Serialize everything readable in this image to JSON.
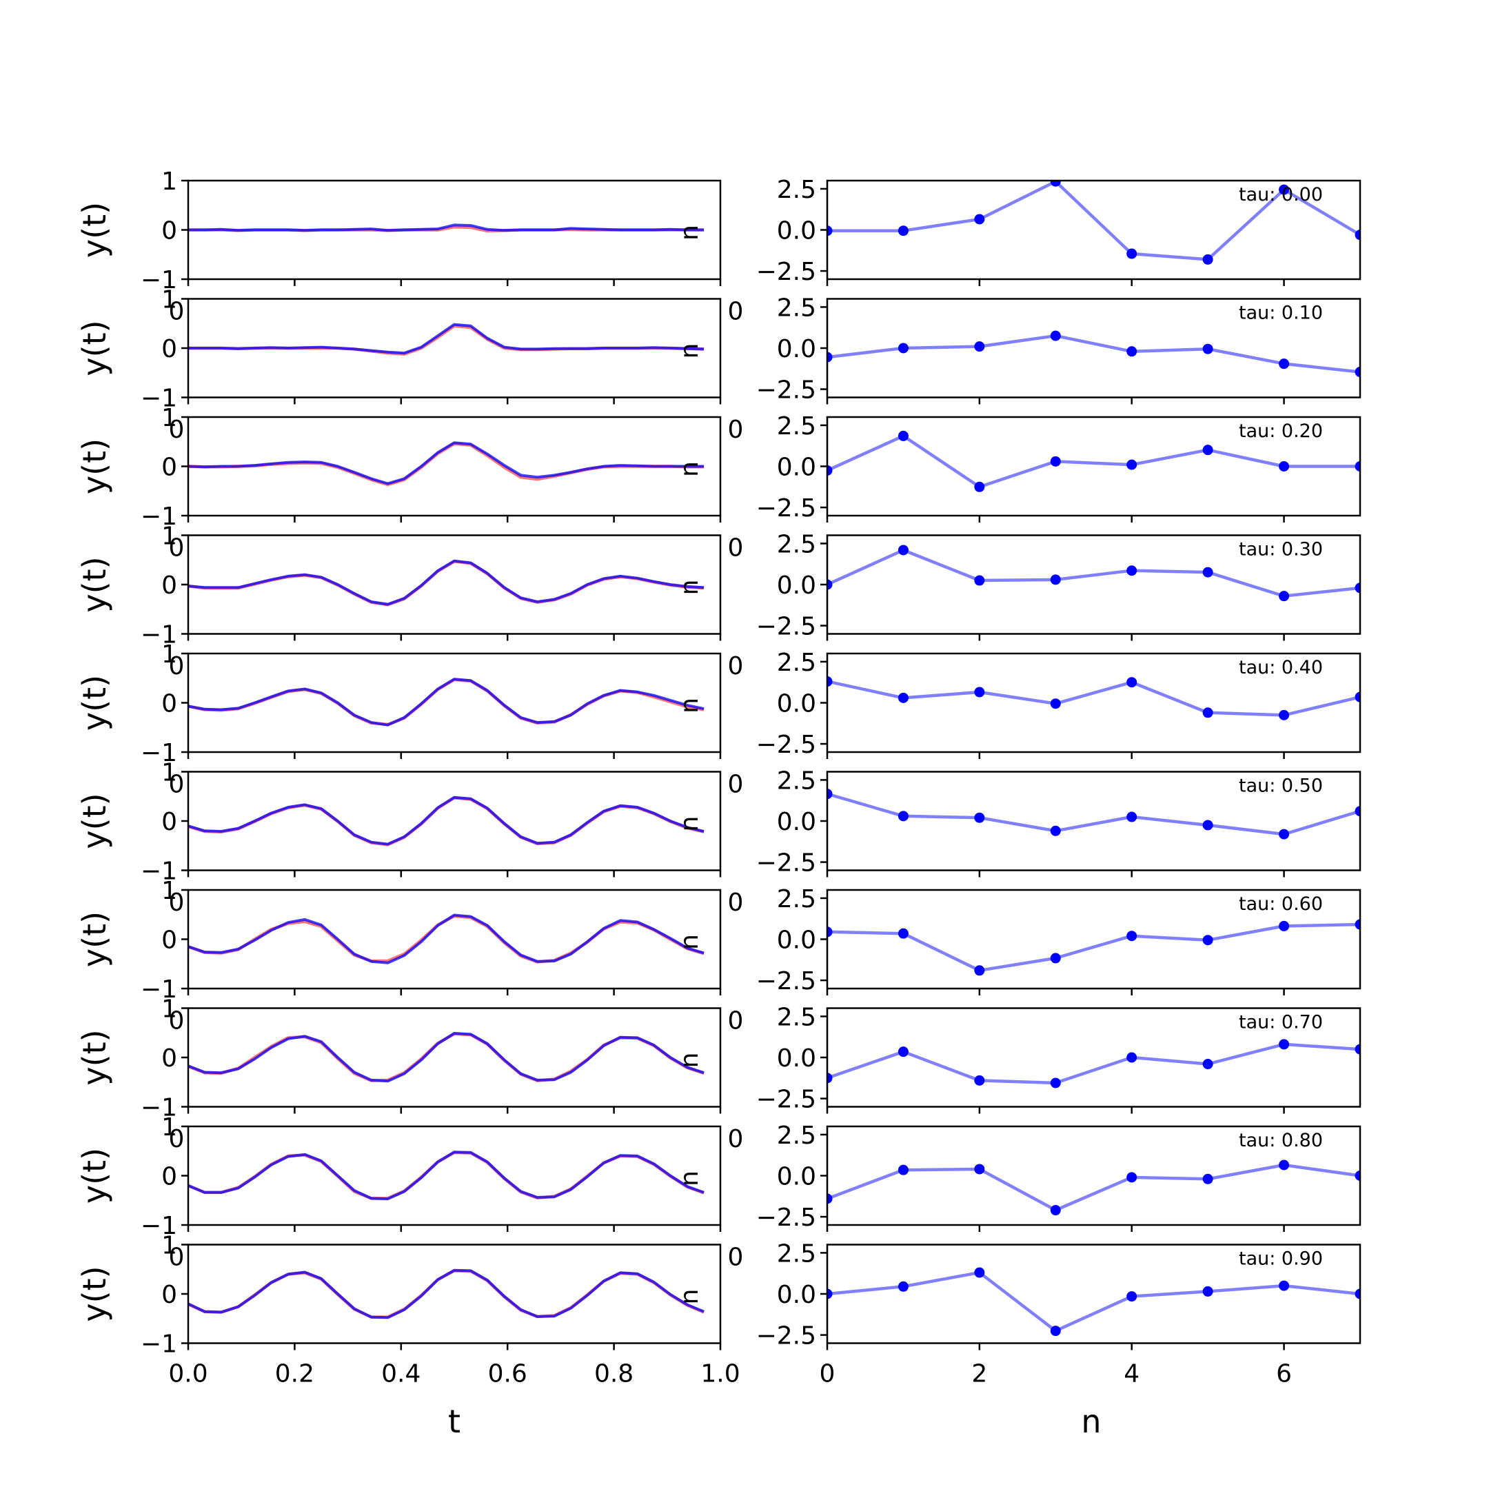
{
  "chart_data": [
    {
      "type": "line",
      "panel": "time-series",
      "xlabel": "t",
      "ylabel": "y(t)",
      "xlim": [
        0,
        1
      ],
      "ylim": [
        -1,
        1
      ],
      "x_ticks": [
        "0.0",
        "0.2",
        "0.4",
        "0.6",
        "0.8",
        "1.0"
      ],
      "y_ticks": [
        "1",
        "0",
        "−1"
      ],
      "colors": {
        "series_a": "#0000ff",
        "series_b": "#ff0000"
      },
      "t": [
        0.0,
        0.031,
        0.062,
        0.094,
        0.125,
        0.156,
        0.188,
        0.219,
        0.25,
        0.281,
        0.312,
        0.344,
        0.375,
        0.406,
        0.438,
        0.469,
        0.5,
        0.531,
        0.562,
        0.594,
        0.625,
        0.656,
        0.688,
        0.719,
        0.75,
        0.781,
        0.812,
        0.844,
        0.875,
        0.906,
        0.938,
        0.969
      ],
      "rows": [
        {
          "tau": 0.0,
          "y": [
            0.0,
            0.0,
            0.01,
            -0.01,
            0.0,
            0.0,
            0.0,
            -0.01,
            0.0,
            0.0,
            0.01,
            0.02,
            -0.01,
            0.0,
            0.01,
            0.02,
            0.1,
            0.09,
            0.01,
            -0.01,
            0.0,
            0.0,
            0.0,
            0.03,
            0.02,
            0.01,
            0.0,
            0.0,
            0.0,
            0.01,
            0.0,
            0.0
          ],
          "y_alt": [
            0.0,
            0.0,
            0.0,
            -0.01,
            0.0,
            0.0,
            0.0,
            -0.01,
            0.0,
            0.0,
            0.0,
            0.0,
            -0.01,
            0.0,
            0.0,
            0.0,
            0.06,
            0.05,
            -0.02,
            -0.01,
            0.0,
            0.0,
            0.0,
            0.01,
            0.0,
            0.0,
            0.0,
            0.0,
            0.0,
            0.0,
            0.0,
            0.0
          ]
        },
        {
          "tau": 0.1,
          "y": [
            0.0,
            0.0,
            0.0,
            -0.01,
            0.0,
            0.01,
            0.0,
            0.01,
            0.02,
            0.0,
            -0.02,
            -0.05,
            -0.08,
            -0.1,
            0.02,
            0.25,
            0.48,
            0.45,
            0.2,
            0.02,
            -0.02,
            -0.02,
            -0.01,
            -0.01,
            -0.01,
            0.0,
            0.0,
            0.0,
            0.01,
            0.0,
            -0.01,
            -0.02
          ],
          "y_alt": [
            0.0,
            0.0,
            0.0,
            -0.01,
            0.0,
            0.0,
            0.0,
            0.0,
            0.0,
            0.0,
            -0.02,
            -0.06,
            -0.1,
            -0.12,
            0.0,
            0.22,
            0.45,
            0.42,
            0.18,
            0.0,
            -0.03,
            -0.03,
            -0.02,
            -0.01,
            -0.01,
            0.0,
            0.0,
            0.0,
            0.0,
            0.0,
            -0.01,
            -0.02
          ]
        },
        {
          "tau": 0.2,
          "y": [
            0.0,
            -0.01,
            0.0,
            0.0,
            0.02,
            0.05,
            0.08,
            0.09,
            0.08,
            0.0,
            -0.12,
            -0.25,
            -0.35,
            -0.25,
            0.0,
            0.28,
            0.48,
            0.45,
            0.25,
            0.02,
            -0.18,
            -0.22,
            -0.18,
            -0.12,
            -0.05,
            0.0,
            0.02,
            0.01,
            0.0,
            0.0,
            0.0,
            0.0
          ],
          "y_alt": [
            0.0,
            -0.01,
            -0.01,
            0.0,
            0.01,
            0.04,
            0.06,
            0.07,
            0.06,
            -0.02,
            -0.14,
            -0.27,
            -0.37,
            -0.27,
            -0.02,
            0.26,
            0.46,
            0.43,
            0.22,
            -0.02,
            -0.22,
            -0.26,
            -0.2,
            -0.13,
            -0.06,
            -0.01,
            0.0,
            0.0,
            0.0,
            0.0,
            -0.01,
            -0.01
          ]
        },
        {
          "tau": 0.3,
          "y": [
            -0.03,
            -0.06,
            -0.06,
            -0.06,
            0.02,
            0.1,
            0.17,
            0.2,
            0.15,
            0.0,
            -0.18,
            -0.35,
            -0.4,
            -0.28,
            -0.02,
            0.28,
            0.48,
            0.44,
            0.23,
            -0.06,
            -0.27,
            -0.35,
            -0.3,
            -0.18,
            0.0,
            0.12,
            0.17,
            0.13,
            0.06,
            0.0,
            -0.04,
            -0.06
          ],
          "y_alt": [
            -0.03,
            -0.07,
            -0.07,
            -0.07,
            0.01,
            0.09,
            0.16,
            0.19,
            0.14,
            -0.01,
            -0.19,
            -0.36,
            -0.41,
            -0.29,
            -0.03,
            0.27,
            0.47,
            0.43,
            0.22,
            -0.07,
            -0.28,
            -0.36,
            -0.31,
            -0.19,
            -0.01,
            0.11,
            0.16,
            0.12,
            0.05,
            -0.01,
            -0.05,
            -0.07
          ]
        },
        {
          "tau": 0.4,
          "y": [
            -0.07,
            -0.13,
            -0.14,
            -0.11,
            0.0,
            0.12,
            0.24,
            0.28,
            0.2,
            0.0,
            -0.25,
            -0.4,
            -0.45,
            -0.3,
            -0.02,
            0.28,
            0.48,
            0.45,
            0.25,
            -0.05,
            -0.3,
            -0.4,
            -0.38,
            -0.25,
            -0.02,
            0.15,
            0.25,
            0.22,
            0.15,
            0.05,
            -0.05,
            -0.12
          ],
          "y_alt": [
            -0.07,
            -0.14,
            -0.15,
            -0.12,
            -0.01,
            0.11,
            0.23,
            0.27,
            0.19,
            -0.01,
            -0.26,
            -0.41,
            -0.44,
            -0.31,
            -0.03,
            0.27,
            0.47,
            0.44,
            0.24,
            -0.06,
            -0.31,
            -0.41,
            -0.39,
            -0.24,
            -0.03,
            0.14,
            0.24,
            0.21,
            0.12,
            0.02,
            -0.08,
            -0.14
          ]
        },
        {
          "tau": 0.5,
          "y": [
            -0.1,
            -0.2,
            -0.21,
            -0.15,
            0.0,
            0.16,
            0.28,
            0.33,
            0.25,
            0.0,
            -0.28,
            -0.43,
            -0.47,
            -0.32,
            -0.05,
            0.27,
            0.48,
            0.45,
            0.26,
            -0.05,
            -0.32,
            -0.45,
            -0.43,
            -0.28,
            -0.03,
            0.2,
            0.31,
            0.28,
            0.16,
            0.0,
            -0.13,
            -0.21
          ],
          "y_alt": [
            -0.11,
            -0.21,
            -0.22,
            -0.16,
            -0.01,
            0.15,
            0.27,
            0.32,
            0.24,
            -0.01,
            -0.29,
            -0.44,
            -0.48,
            -0.33,
            -0.06,
            0.26,
            0.47,
            0.44,
            0.25,
            -0.06,
            -0.33,
            -0.46,
            -0.44,
            -0.29,
            -0.04,
            0.19,
            0.3,
            0.27,
            0.15,
            -0.01,
            -0.14,
            -0.22
          ]
        },
        {
          "tau": 0.6,
          "y": [
            -0.15,
            -0.26,
            -0.27,
            -0.2,
            -0.02,
            0.18,
            0.34,
            0.4,
            0.29,
            0.0,
            -0.3,
            -0.45,
            -0.48,
            -0.33,
            -0.05,
            0.28,
            0.49,
            0.46,
            0.28,
            -0.05,
            -0.32,
            -0.45,
            -0.44,
            -0.3,
            -0.05,
            0.22,
            0.38,
            0.35,
            0.2,
            0.02,
            -0.18,
            -0.28
          ],
          "y_alt": [
            -0.15,
            -0.27,
            -0.28,
            -0.21,
            0.0,
            0.2,
            0.32,
            0.36,
            0.26,
            -0.03,
            -0.32,
            -0.44,
            -0.44,
            -0.3,
            -0.02,
            0.29,
            0.47,
            0.44,
            0.26,
            -0.07,
            -0.34,
            -0.46,
            -0.43,
            -0.28,
            -0.06,
            0.21,
            0.35,
            0.33,
            0.19,
            0.0,
            -0.19,
            -0.29
          ]
        },
        {
          "tau": 0.7,
          "y": [
            -0.17,
            -0.3,
            -0.31,
            -0.23,
            -0.03,
            0.2,
            0.38,
            0.43,
            0.32,
            0.0,
            -0.3,
            -0.46,
            -0.48,
            -0.33,
            -0.05,
            0.28,
            0.49,
            0.47,
            0.28,
            -0.05,
            -0.33,
            -0.46,
            -0.45,
            -0.3,
            -0.05,
            0.24,
            0.41,
            0.4,
            0.25,
            0.0,
            -0.2,
            -0.31
          ],
          "y_alt": [
            -0.18,
            -0.31,
            -0.32,
            -0.22,
            0.0,
            0.22,
            0.4,
            0.42,
            0.3,
            -0.02,
            -0.32,
            -0.47,
            -0.46,
            -0.31,
            -0.03,
            0.29,
            0.48,
            0.46,
            0.27,
            -0.06,
            -0.34,
            -0.47,
            -0.44,
            -0.28,
            -0.04,
            0.25,
            0.4,
            0.39,
            0.24,
            -0.01,
            -0.21,
            -0.32
          ]
        },
        {
          "tau": 0.8,
          "y": [
            -0.2,
            -0.34,
            -0.34,
            -0.25,
            -0.03,
            0.22,
            0.39,
            0.43,
            0.3,
            0.0,
            -0.3,
            -0.46,
            -0.47,
            -0.32,
            -0.04,
            0.28,
            0.48,
            0.47,
            0.28,
            -0.05,
            -0.32,
            -0.44,
            -0.43,
            -0.28,
            -0.02,
            0.26,
            0.41,
            0.4,
            0.24,
            0.0,
            -0.22,
            -0.34
          ],
          "y_alt": [
            -0.2,
            -0.34,
            -0.34,
            -0.24,
            -0.02,
            0.23,
            0.4,
            0.42,
            0.29,
            -0.01,
            -0.32,
            -0.46,
            -0.46,
            -0.31,
            -0.03,
            0.28,
            0.47,
            0.46,
            0.27,
            -0.06,
            -0.33,
            -0.45,
            -0.42,
            -0.27,
            -0.01,
            0.26,
            0.4,
            0.39,
            0.23,
            -0.01,
            -0.23,
            -0.35
          ]
        },
        {
          "tau": 0.9,
          "y": [
            -0.2,
            -0.36,
            -0.37,
            -0.26,
            -0.03,
            0.23,
            0.4,
            0.44,
            0.31,
            0.0,
            -0.3,
            -0.47,
            -0.48,
            -0.32,
            -0.04,
            0.29,
            0.48,
            0.47,
            0.28,
            -0.05,
            -0.32,
            -0.46,
            -0.45,
            -0.29,
            -0.03,
            0.26,
            0.43,
            0.41,
            0.24,
            -0.01,
            -0.22,
            -0.36
          ],
          "y_alt": [
            -0.21,
            -0.36,
            -0.37,
            -0.26,
            -0.02,
            0.23,
            0.4,
            0.43,
            0.3,
            -0.01,
            -0.31,
            -0.47,
            -0.47,
            -0.31,
            -0.03,
            0.29,
            0.47,
            0.46,
            0.27,
            -0.06,
            -0.33,
            -0.46,
            -0.44,
            -0.28,
            -0.02,
            0.26,
            0.42,
            0.4,
            0.23,
            -0.02,
            -0.23,
            -0.37
          ]
        }
      ]
    },
    {
      "type": "line",
      "panel": "coefficients",
      "xlabel": "n",
      "ylabel": "",
      "xlim": [
        0,
        7
      ],
      "ylim": [
        -3,
        3
      ],
      "x_ticks": [
        "0",
        "2",
        "4",
        "6"
      ],
      "y_ticks": [
        "2.5",
        "0.0",
        "−2.5"
      ],
      "marker": "circle",
      "colors": {
        "line": "#8080ff",
        "marker": "#0000ff"
      },
      "n": [
        0,
        1,
        2,
        3,
        4,
        5,
        6,
        7
      ],
      "rows": [
        {
          "tau": 0.0,
          "label": "tau: 0.00",
          "values": [
            -0.05,
            -0.05,
            0.65,
            2.95,
            -1.45,
            -1.8,
            2.45,
            -0.3
          ]
        },
        {
          "tau": 0.1,
          "label": "tau: 0.10",
          "values": [
            -0.55,
            0.0,
            0.1,
            0.75,
            -0.2,
            -0.05,
            -0.95,
            -1.45
          ]
        },
        {
          "tau": 0.2,
          "label": "tau: 0.20",
          "values": [
            -0.25,
            1.85,
            -1.25,
            0.3,
            0.1,
            1.0,
            0.0,
            0.0
          ]
        },
        {
          "tau": 0.3,
          "label": "tau: 0.30",
          "values": [
            0.0,
            2.1,
            0.25,
            0.3,
            0.85,
            0.75,
            -0.7,
            -0.2
          ]
        },
        {
          "tau": 0.4,
          "label": "tau: 0.40",
          "values": [
            1.3,
            0.3,
            0.65,
            -0.05,
            1.25,
            -0.6,
            -0.75,
            0.35
          ]
        },
        {
          "tau": 0.5,
          "label": "tau: 0.50",
          "values": [
            1.65,
            0.3,
            0.2,
            -0.6,
            0.25,
            -0.25,
            -0.8,
            0.6
          ]
        },
        {
          "tau": 0.6,
          "label": "tau: 0.60",
          "values": [
            0.45,
            0.35,
            -1.9,
            -1.15,
            0.2,
            -0.05,
            0.8,
            0.9
          ]
        },
        {
          "tau": 0.7,
          "label": "tau: 0.70",
          "values": [
            -1.25,
            0.35,
            -1.4,
            -1.55,
            0.0,
            -0.4,
            0.8,
            0.5
          ]
        },
        {
          "tau": 0.8,
          "label": "tau: 0.80",
          "values": [
            -1.4,
            0.35,
            0.4,
            -2.1,
            -0.1,
            -0.2,
            0.65,
            0.0
          ]
        },
        {
          "tau": 0.9,
          "label": "tau: 0.90",
          "values": [
            0.0,
            0.45,
            1.3,
            -2.25,
            -0.15,
            0.15,
            0.5,
            0.0
          ]
        }
      ]
    }
  ]
}
